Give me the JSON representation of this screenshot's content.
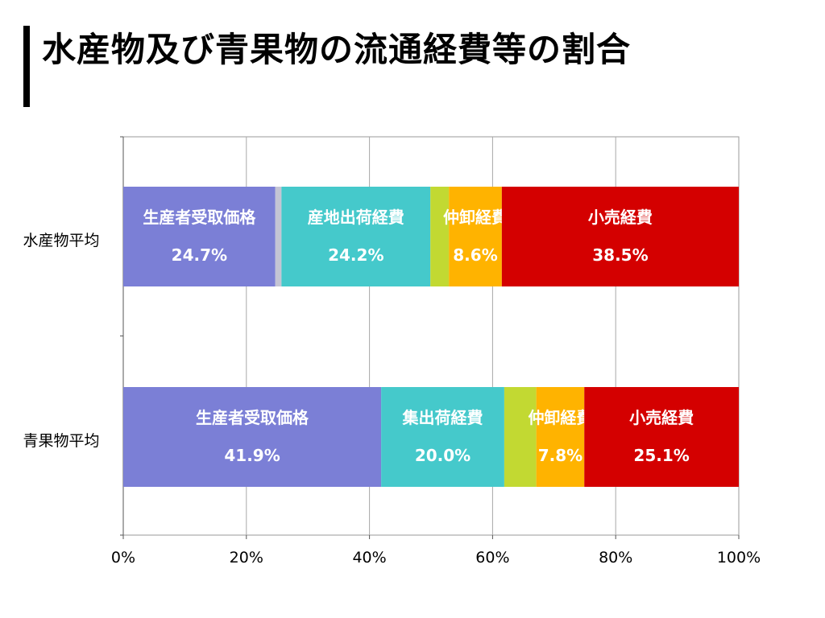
{
  "title": "水産物及び青果物の流通経費等の割合",
  "chart_data": {
    "type": "bar",
    "orientation": "horizontal",
    "stacked": true,
    "xlim": [
      0,
      100
    ],
    "x_ticks": [
      "0%",
      "20%",
      "40%",
      "60%",
      "80%",
      "100%"
    ],
    "grid": true,
    "categories": [
      "水産物平均",
      "青果物平均"
    ],
    "bars": [
      {
        "category": "水産物平均",
        "segments": [
          {
            "name": "生産者受取価格",
            "value": 24.7,
            "label": "24.7%",
            "color": "#7b7fd6",
            "show": true
          },
          {
            "name": "",
            "value": 1.0,
            "label": "",
            "color": "#c4c4d4",
            "show": false
          },
          {
            "name": "産地出荷経費",
            "value": 24.2,
            "label": "24.2%",
            "color": "#45c9cb",
            "show": true
          },
          {
            "name": "",
            "value": 3.0,
            "label": "",
            "color": "#c2d932",
            "show": false
          },
          {
            "name": "仲卸経費",
            "value": 8.6,
            "label": "8.6%",
            "color": "#ffb300",
            "show": true
          },
          {
            "name": "小売経費",
            "value": 38.5,
            "label": "38.5%",
            "color": "#d40000",
            "show": true
          }
        ]
      },
      {
        "category": "青果物平均",
        "segments": [
          {
            "name": "生産者受取価格",
            "value": 41.9,
            "label": "41.9%",
            "color": "#7b7fd6",
            "show": true
          },
          {
            "name": "集出荷経費",
            "value": 20.0,
            "label": "20.0%",
            "color": "#45c9cb",
            "show": true
          },
          {
            "name": "",
            "value": 5.2,
            "label": "",
            "color": "#c2d932",
            "show": false
          },
          {
            "name": "仲卸経費",
            "value": 7.8,
            "label": "7.8%",
            "color": "#ffb300",
            "show": true
          },
          {
            "name": "小売経費",
            "value": 25.1,
            "label": "25.1%",
            "color": "#d40000",
            "show": true
          }
        ]
      }
    ]
  }
}
